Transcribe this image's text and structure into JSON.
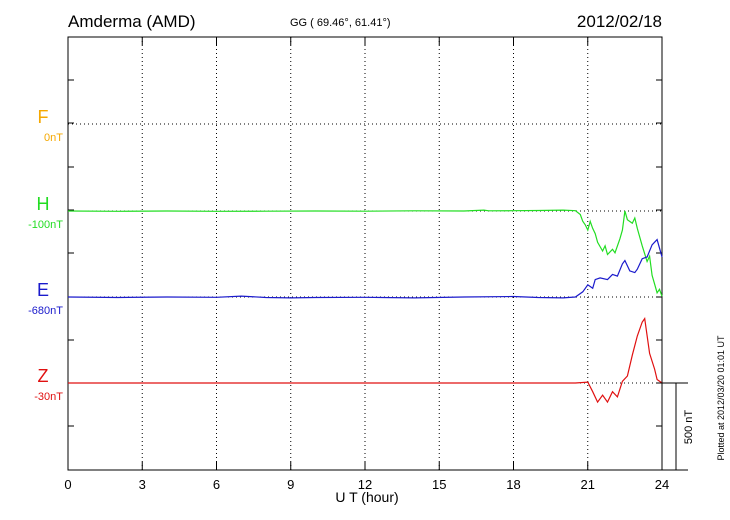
{
  "header": {
    "station": "Amderma (AMD)",
    "coords": "GG ( 69.46°,  61.41°)",
    "date": "2012/02/18"
  },
  "footer": {
    "plotted_note": "Plotted at 2012/03/20 01:01 UT",
    "scale_label": "500 nT"
  },
  "chart_data": {
    "type": "line",
    "xlabel": "U T (hour)",
    "xlim": [
      0,
      24
    ],
    "x_ticks": [
      0,
      3,
      6,
      9,
      12,
      15,
      18,
      21,
      24
    ],
    "scale_bar_nT": 500,
    "grid": true,
    "series": [
      {
        "name": "F",
        "offset_label": "0nT",
        "color": "#f5a800",
        "points": []
      },
      {
        "name": "H",
        "offset_label": "-100nT",
        "color": "#22dd22",
        "points": [
          [
            0,
            0
          ],
          [
            2,
            -2
          ],
          [
            4,
            0
          ],
          [
            6,
            -2
          ],
          [
            8,
            -1
          ],
          [
            10,
            0
          ],
          [
            12,
            -1
          ],
          [
            14,
            1
          ],
          [
            16,
            0
          ],
          [
            16.8,
            5
          ],
          [
            17,
            1
          ],
          [
            18,
            2
          ],
          [
            19,
            3
          ],
          [
            20,
            5
          ],
          [
            20.5,
            2
          ],
          [
            20.7,
            -20
          ],
          [
            20.8,
            -60
          ],
          [
            20.9,
            -80
          ],
          [
            21.0,
            -110
          ],
          [
            21.1,
            -60
          ],
          [
            21.2,
            -100
          ],
          [
            21.3,
            -130
          ],
          [
            21.4,
            -180
          ],
          [
            21.6,
            -230
          ],
          [
            21.7,
            -200
          ],
          [
            21.8,
            -250
          ],
          [
            22.0,
            -220
          ],
          [
            22.1,
            -240
          ],
          [
            22.3,
            -160
          ],
          [
            22.4,
            -110
          ],
          [
            22.5,
            0
          ],
          [
            22.6,
            -50
          ],
          [
            22.8,
            -70
          ],
          [
            22.9,
            -40
          ],
          [
            23.0,
            -100
          ],
          [
            23.2,
            -200
          ],
          [
            23.4,
            -290
          ],
          [
            23.5,
            -260
          ],
          [
            23.6,
            -370
          ],
          [
            23.7,
            -420
          ],
          [
            23.8,
            -470
          ],
          [
            23.9,
            -450
          ],
          [
            24.0,
            -490
          ]
        ]
      },
      {
        "name": "E",
        "offset_label": "-680nT",
        "color": "#1a1acc",
        "points": [
          [
            0,
            0
          ],
          [
            2,
            -3
          ],
          [
            4,
            0
          ],
          [
            6,
            -2
          ],
          [
            7,
            5
          ],
          [
            8,
            -3
          ],
          [
            9,
            -5
          ],
          [
            10,
            -3
          ],
          [
            12,
            -2
          ],
          [
            14,
            -5
          ],
          [
            16,
            0
          ],
          [
            18,
            3
          ],
          [
            19,
            -3
          ],
          [
            20,
            -5
          ],
          [
            20.5,
            0
          ],
          [
            20.8,
            30
          ],
          [
            21.0,
            70
          ],
          [
            21.2,
            50
          ],
          [
            21.3,
            100
          ],
          [
            21.5,
            110
          ],
          [
            21.8,
            100
          ],
          [
            22.0,
            130
          ],
          [
            22.2,
            120
          ],
          [
            22.4,
            190
          ],
          [
            22.5,
            210
          ],
          [
            22.7,
            150
          ],
          [
            22.9,
            140
          ],
          [
            23.0,
            160
          ],
          [
            23.2,
            220
          ],
          [
            23.4,
            230
          ],
          [
            23.6,
            300
          ],
          [
            23.8,
            330
          ],
          [
            24.0,
            230
          ]
        ]
      },
      {
        "name": "Z",
        "offset_label": "-30nT",
        "color": "#e01010",
        "points": [
          [
            0,
            0
          ],
          [
            3,
            0
          ],
          [
            6,
            0
          ],
          [
            9,
            0
          ],
          [
            12,
            0
          ],
          [
            15,
            0
          ],
          [
            18,
            0
          ],
          [
            20.5,
            0
          ],
          [
            21.0,
            5
          ],
          [
            21.2,
            -50
          ],
          [
            21.4,
            -110
          ],
          [
            21.6,
            -70
          ],
          [
            21.8,
            -110
          ],
          [
            22.0,
            -50
          ],
          [
            22.2,
            -80
          ],
          [
            22.4,
            10
          ],
          [
            22.6,
            40
          ],
          [
            22.8,
            160
          ],
          [
            23.0,
            270
          ],
          [
            23.2,
            350
          ],
          [
            23.3,
            370
          ],
          [
            23.5,
            170
          ],
          [
            23.7,
            80
          ],
          [
            23.8,
            20
          ],
          [
            24.0,
            0
          ]
        ]
      }
    ]
  }
}
